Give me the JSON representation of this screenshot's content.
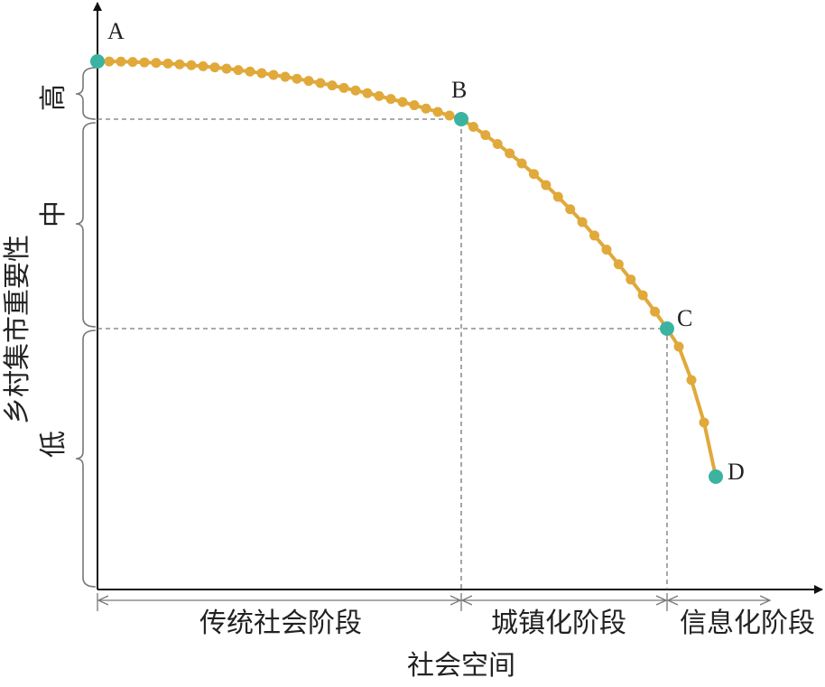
{
  "y_axis_label": "乡村集市重要性",
  "levels": [
    "高",
    "中",
    "低"
  ],
  "points": [
    "A",
    "B",
    "C",
    "D"
  ],
  "stages": [
    "传统社会阶段",
    "城镇化阶段",
    "信息化阶段"
  ],
  "x_axis_label": "社会空间"
}
